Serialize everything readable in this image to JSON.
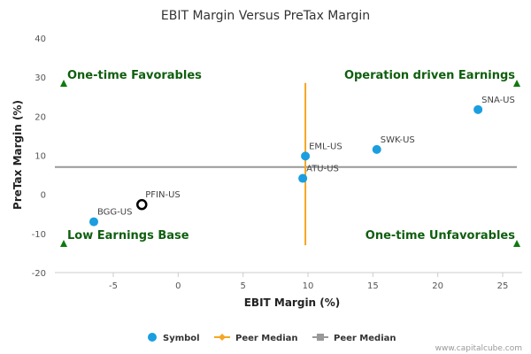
{
  "chart_data": {
    "type": "scatter",
    "title": "EBIT Margin Versus PreTax Margin",
    "xlabel": "EBIT Margin (%)",
    "ylabel": "PreTax Margin (%)",
    "xlim": [
      -9.5,
      26.5
    ],
    "ylim": [
      -20,
      40
    ],
    "xticks": [
      -5,
      0,
      5,
      10,
      15,
      20,
      25
    ],
    "yticks": [
      -20,
      -10,
      0,
      10,
      20,
      30,
      40
    ],
    "grid": false,
    "legend_position": "bottom",
    "points": [
      {
        "label": "SNA-US",
        "x": 23.1,
        "y": 21.7,
        "style": "filled"
      },
      {
        "label": "SWK-US",
        "x": 15.3,
        "y": 11.5,
        "style": "filled"
      },
      {
        "label": "EML-US",
        "x": 9.8,
        "y": 9.8,
        "style": "filled"
      },
      {
        "label": "ATU-US",
        "x": 9.6,
        "y": 4.1,
        "style": "filled"
      },
      {
        "label": "PFIN-US",
        "x": -2.8,
        "y": -2.6,
        "style": "hollow"
      },
      {
        "label": "BGG-US",
        "x": -6.5,
        "y": -7.0,
        "style": "filled"
      }
    ],
    "peer_median_x": 9.8,
    "peer_median_y": 7.0,
    "vertical_median_range": [
      -13,
      28.5
    ],
    "quadrants": {
      "top_left": "One-time Favorables",
      "top_right": "Operation driven Earnings",
      "bottom_left": "Low Earnings Base",
      "bottom_right": "One-time Unfavorables"
    },
    "legend": [
      {
        "label": "Symbol",
        "kind": "dot",
        "color": "#1a9ee0"
      },
      {
        "label": "Peer Median",
        "kind": "diamond-line",
        "color": "#f5a623"
      },
      {
        "label": "Peer Median",
        "kind": "square-line",
        "color": "#999999"
      }
    ]
  },
  "colors": {
    "point": "#1a9ee0",
    "hollow_point": "#000000",
    "vertical_median": "#f5a623",
    "horizontal_median": "#999999",
    "quadrant_text": "#0f5e0f"
  },
  "credit": "www.capitalcube.com"
}
